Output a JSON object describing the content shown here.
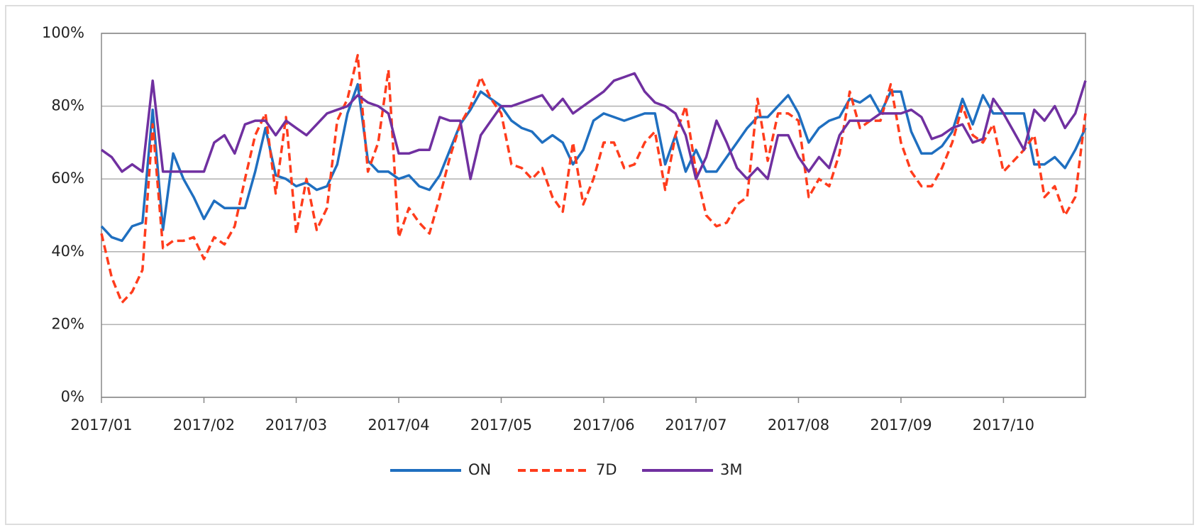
{
  "chart_data": {
    "type": "line",
    "categories": [
      "2017/01",
      null,
      null,
      null,
      null,
      null,
      null,
      null,
      null,
      null,
      "2017/02",
      null,
      null,
      null,
      null,
      null,
      null,
      null,
      null,
      "2017/03",
      null,
      null,
      null,
      null,
      null,
      null,
      null,
      null,
      null,
      "2017/04",
      null,
      null,
      null,
      null,
      null,
      null,
      null,
      null,
      null,
      "2017/05",
      null,
      null,
      null,
      null,
      null,
      null,
      null,
      null,
      null,
      "2017/06",
      null,
      null,
      null,
      null,
      null,
      null,
      null,
      null,
      "2017/07",
      null,
      null,
      null,
      null,
      null,
      null,
      null,
      null,
      null,
      "2017/08",
      null,
      null,
      null,
      null,
      null,
      null,
      null,
      null,
      null,
      "2017/09",
      null,
      null,
      null,
      null,
      null,
      null,
      null,
      null,
      null,
      "2017/10",
      null,
      null,
      null,
      null,
      null,
      null,
      null,
      null
    ],
    "series": [
      {
        "name": "ON",
        "color": "#1f6fc0",
        "dashed": false,
        "values": [
          47,
          44,
          43,
          47,
          48,
          79,
          46,
          67,
          60,
          55,
          49,
          54,
          52,
          52,
          52,
          62,
          74,
          61,
          60,
          58,
          59,
          57,
          58,
          64,
          78,
          86,
          65,
          62,
          62,
          60,
          61,
          58,
          57,
          61,
          68,
          75,
          79,
          84,
          82,
          80,
          76,
          74,
          73,
          70,
          72,
          70,
          64,
          68,
          76,
          78,
          77,
          76,
          77,
          78,
          78,
          64,
          72,
          62,
          68,
          62,
          62,
          66,
          70,
          74,
          77,
          77,
          80,
          83,
          78,
          70,
          74,
          76,
          77,
          82,
          81,
          83,
          78,
          84,
          84,
          73,
          67,
          67,
          69,
          73,
          82,
          75,
          83,
          78,
          78,
          78,
          78,
          64,
          64,
          66,
          63,
          68,
          74
        ]
      },
      {
        "name": "7D",
        "color": "#ff3c1c",
        "dashed": true,
        "values": [
          45,
          33,
          26,
          29,
          35,
          75,
          41,
          43,
          43,
          44,
          38,
          44,
          42,
          47,
          60,
          72,
          78,
          56,
          77,
          45,
          60,
          46,
          52,
          76,
          82,
          94,
          62,
          70,
          90,
          44,
          52,
          48,
          45,
          55,
          66,
          75,
          80,
          88,
          82,
          78,
          64,
          63,
          60,
          63,
          55,
          51,
          70,
          53,
          60,
          70,
          70,
          63,
          64,
          70,
          73,
          57,
          72,
          80,
          62,
          50,
          47,
          48,
          53,
          55,
          82,
          65,
          78,
          78,
          76,
          55,
          60,
          58,
          67,
          84,
          74,
          76,
          76,
          86,
          70,
          62,
          58,
          58,
          63,
          70,
          80,
          72,
          70,
          75,
          62,
          65,
          68,
          72,
          55,
          58,
          50,
          55,
          78
        ]
      },
      {
        "name": "3M",
        "color": "#7030a0",
        "dashed": false,
        "values": [
          68,
          66,
          62,
          64,
          62,
          87,
          62,
          62,
          62,
          62,
          62,
          70,
          72,
          67,
          75,
          76,
          76,
          72,
          76,
          74,
          72,
          75,
          78,
          79,
          80,
          83,
          81,
          80,
          78,
          67,
          67,
          68,
          68,
          77,
          76,
          76,
          60,
          72,
          76,
          80,
          80,
          81,
          82,
          83,
          79,
          82,
          78,
          80,
          82,
          84,
          87,
          88,
          89,
          84,
          81,
          80,
          78,
          72,
          60,
          66,
          76,
          70,
          63,
          60,
          63,
          60,
          72,
          72,
          66,
          62,
          66,
          63,
          72,
          76,
          76,
          76,
          78,
          78,
          78,
          79,
          77,
          71,
          72,
          74,
          75,
          70,
          71,
          82,
          78,
          73,
          68,
          79,
          76,
          80,
          74,
          78,
          87
        ]
      }
    ],
    "ylim": [
      0,
      100
    ],
    "yticks": [
      {
        "value": 0,
        "label": "0%"
      },
      {
        "value": 20,
        "label": "20%"
      },
      {
        "value": 40,
        "label": "40%"
      },
      {
        "value": 60,
        "label": "60%"
      },
      {
        "value": 80,
        "label": "80%"
      },
      {
        "value": 100,
        "label": "100%"
      }
    ],
    "grid": true,
    "legend": "bottom"
  }
}
